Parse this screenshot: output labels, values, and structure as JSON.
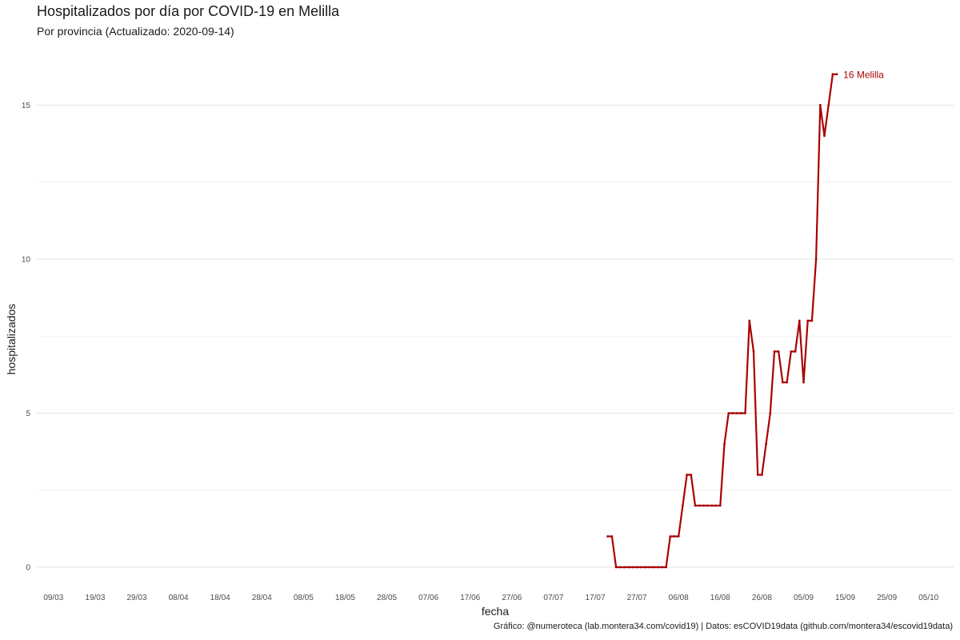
{
  "header": {
    "title": "Hospitalizados por día por COVID-19 en Melilla",
    "subtitle": "Por provincia  (Actualizado: 2020-09-14)"
  },
  "caption": "Gráfico: @numeroteca (lab.montera34.com/covid19) | Datos: esCOVID19data (github.com/montera34/escovid19data)",
  "colors": {
    "series": "#aa0000",
    "grid_major": "#e3e3e3",
    "grid_minor": "#f1f1f1",
    "text": "#1a1a1a"
  },
  "chart_data": {
    "type": "line",
    "title": "Hospitalizados por día por COVID-19 en Melilla",
    "subtitle": "Por provincia  (Actualizado: 2020-09-14)",
    "xlabel": "fecha",
    "ylabel": "hospitalizados",
    "xlim": [
      "2020-03-05",
      "2020-10-11"
    ],
    "ylim": [
      -0.7,
      16.8
    ],
    "grid": true,
    "x_ticks": [
      {
        "date": "2020-03-09",
        "label": "09/03"
      },
      {
        "date": "2020-03-19",
        "label": "19/03"
      },
      {
        "date": "2020-03-29",
        "label": "29/03"
      },
      {
        "date": "2020-04-08",
        "label": "08/04"
      },
      {
        "date": "2020-04-18",
        "label": "18/04"
      },
      {
        "date": "2020-04-28",
        "label": "28/04"
      },
      {
        "date": "2020-05-08",
        "label": "08/05"
      },
      {
        "date": "2020-05-18",
        "label": "18/05"
      },
      {
        "date": "2020-05-28",
        "label": "28/05"
      },
      {
        "date": "2020-06-07",
        "label": "07/06"
      },
      {
        "date": "2020-06-17",
        "label": "17/06"
      },
      {
        "date": "2020-06-27",
        "label": "27/06"
      },
      {
        "date": "2020-07-07",
        "label": "07/07"
      },
      {
        "date": "2020-07-17",
        "label": "17/07"
      },
      {
        "date": "2020-07-27",
        "label": "27/07"
      },
      {
        "date": "2020-08-06",
        "label": "06/08"
      },
      {
        "date": "2020-08-16",
        "label": "16/08"
      },
      {
        "date": "2020-08-26",
        "label": "26/08"
      },
      {
        "date": "2020-09-05",
        "label": "05/09"
      },
      {
        "date": "2020-09-15",
        "label": "15/09"
      },
      {
        "date": "2020-09-25",
        "label": "25/09"
      },
      {
        "date": "2020-10-05",
        "label": "05/10"
      }
    ],
    "y_ticks": [
      {
        "value": 0,
        "label": "0"
      },
      {
        "value": 5,
        "label": "5"
      },
      {
        "value": 10,
        "label": "10"
      },
      {
        "value": 15,
        "label": "15"
      }
    ],
    "y_minor": [
      2.5,
      7.5,
      12.5
    ],
    "series": [
      {
        "name": "Melilla",
        "end_label": "16 Melilla",
        "color": "#aa0000",
        "points": [
          {
            "x": "2020-07-20",
            "y": 1
          },
          {
            "x": "2020-07-21",
            "y": 1
          },
          {
            "x": "2020-07-22",
            "y": 0
          },
          {
            "x": "2020-07-23",
            "y": 0
          },
          {
            "x": "2020-07-24",
            "y": 0
          },
          {
            "x": "2020-07-25",
            "y": 0
          },
          {
            "x": "2020-07-26",
            "y": 0
          },
          {
            "x": "2020-07-27",
            "y": 0
          },
          {
            "x": "2020-07-28",
            "y": 0
          },
          {
            "x": "2020-07-29",
            "y": 0
          },
          {
            "x": "2020-07-30",
            "y": 0
          },
          {
            "x": "2020-07-31",
            "y": 0
          },
          {
            "x": "2020-08-01",
            "y": 0
          },
          {
            "x": "2020-08-02",
            "y": 0
          },
          {
            "x": "2020-08-03",
            "y": 0
          },
          {
            "x": "2020-08-04",
            "y": 1
          },
          {
            "x": "2020-08-05",
            "y": 1
          },
          {
            "x": "2020-08-06",
            "y": 1
          },
          {
            "x": "2020-08-07",
            "y": 2
          },
          {
            "x": "2020-08-08",
            "y": 3
          },
          {
            "x": "2020-08-09",
            "y": 3
          },
          {
            "x": "2020-08-10",
            "y": 2
          },
          {
            "x": "2020-08-11",
            "y": 2
          },
          {
            "x": "2020-08-12",
            "y": 2
          },
          {
            "x": "2020-08-13",
            "y": 2
          },
          {
            "x": "2020-08-14",
            "y": 2
          },
          {
            "x": "2020-08-15",
            "y": 2
          },
          {
            "x": "2020-08-16",
            "y": 2
          },
          {
            "x": "2020-08-17",
            "y": 4
          },
          {
            "x": "2020-08-18",
            "y": 5
          },
          {
            "x": "2020-08-19",
            "y": 5
          },
          {
            "x": "2020-08-20",
            "y": 5
          },
          {
            "x": "2020-08-21",
            "y": 5
          },
          {
            "x": "2020-08-22",
            "y": 5
          },
          {
            "x": "2020-08-23",
            "y": 8
          },
          {
            "x": "2020-08-24",
            "y": 7
          },
          {
            "x": "2020-08-25",
            "y": 3
          },
          {
            "x": "2020-08-26",
            "y": 3
          },
          {
            "x": "2020-08-27",
            "y": 4
          },
          {
            "x": "2020-08-28",
            "y": 5
          },
          {
            "x": "2020-08-29",
            "y": 7
          },
          {
            "x": "2020-08-30",
            "y": 7
          },
          {
            "x": "2020-08-31",
            "y": 6
          },
          {
            "x": "2020-09-01",
            "y": 6
          },
          {
            "x": "2020-09-02",
            "y": 7
          },
          {
            "x": "2020-09-03",
            "y": 7
          },
          {
            "x": "2020-09-04",
            "y": 8
          },
          {
            "x": "2020-09-05",
            "y": 6
          },
          {
            "x": "2020-09-06",
            "y": 8
          },
          {
            "x": "2020-09-07",
            "y": 8
          },
          {
            "x": "2020-09-08",
            "y": 10
          },
          {
            "x": "2020-09-09",
            "y": 15
          },
          {
            "x": "2020-09-10",
            "y": 14
          },
          {
            "x": "2020-09-11",
            "y": 15
          },
          {
            "x": "2020-09-12",
            "y": 16
          },
          {
            "x": "2020-09-13",
            "y": 16
          }
        ]
      }
    ]
  }
}
